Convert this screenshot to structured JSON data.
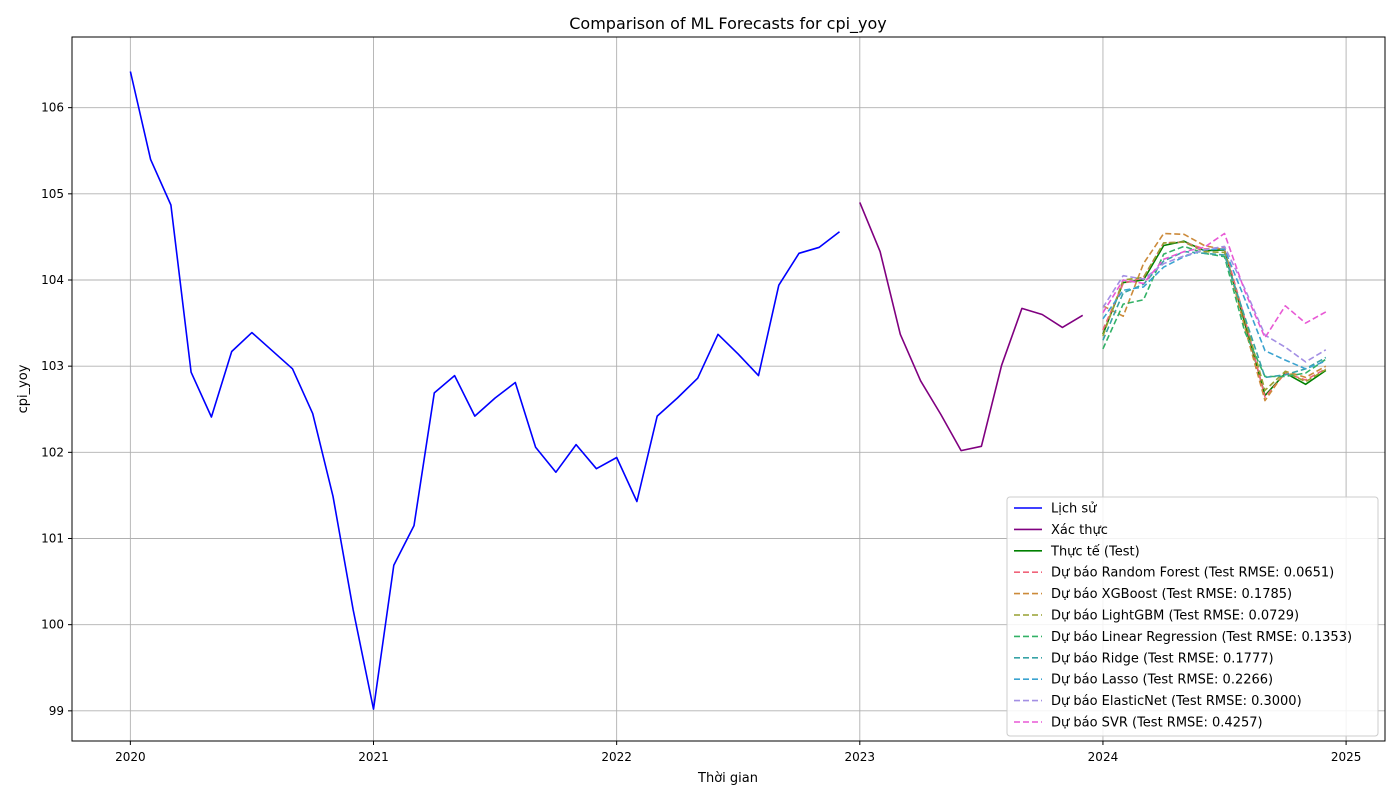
{
  "chart_data": {
    "type": "line",
    "title": "Comparison of ML Forecasts for cpi_yoy",
    "xlabel": "Thời gian",
    "ylabel": "cpi_yoy",
    "xlim": [
      2019.76,
      2025.16
    ],
    "ylim": [
      98.65,
      106.82
    ],
    "x_ticks": [
      {
        "value": 2020,
        "label": "2020"
      },
      {
        "value": 2021,
        "label": "2021"
      },
      {
        "value": 2022,
        "label": "2022"
      },
      {
        "value": 2023,
        "label": "2023"
      },
      {
        "value": 2024,
        "label": "2024"
      },
      {
        "value": 2025,
        "label": "2025"
      }
    ],
    "y_ticks": [
      {
        "value": 99,
        "label": "99"
      },
      {
        "value": 100,
        "label": "100"
      },
      {
        "value": 101,
        "label": "101"
      },
      {
        "value": 102,
        "label": "102"
      },
      {
        "value": 103,
        "label": "103"
      },
      {
        "value": 104,
        "label": "104"
      },
      {
        "value": 105,
        "label": "105"
      },
      {
        "value": 106,
        "label": "106"
      }
    ],
    "grid": true,
    "legend_position": "lower-right",
    "series": [
      {
        "name": "Lịch sử",
        "color": "#0000ff",
        "style": "solid",
        "x": [
          "2020-01",
          "2020-02",
          "2020-03",
          "2020-04",
          "2020-05",
          "2020-06",
          "2020-07",
          "2020-08",
          "2020-09",
          "2020-10",
          "2020-11",
          "2020-12",
          "2021-01",
          "2021-02",
          "2021-03",
          "2021-04",
          "2021-05",
          "2021-06",
          "2021-07",
          "2021-08",
          "2021-09",
          "2021-10",
          "2021-11",
          "2021-12",
          "2022-01",
          "2022-02",
          "2022-03",
          "2022-04",
          "2022-05",
          "2022-06",
          "2022-07",
          "2022-08",
          "2022-09",
          "2022-10",
          "2022-11",
          "2022-12"
        ],
        "y": [
          106.42,
          105.4,
          104.87,
          102.93,
          102.41,
          103.17,
          103.39,
          103.18,
          102.97,
          102.45,
          101.49,
          100.17,
          99.02,
          100.69,
          101.15,
          102.69,
          102.89,
          102.42,
          102.63,
          102.81,
          102.06,
          101.77,
          102.09,
          101.81,
          101.94,
          101.43,
          102.42,
          102.63,
          102.86,
          103.37,
          103.14,
          102.89,
          103.94,
          104.31,
          104.38,
          104.56
        ]
      },
      {
        "name": "Xác thực",
        "color": "#800080",
        "style": "solid",
        "x": [
          "2023-01",
          "2023-02",
          "2023-03",
          "2023-04",
          "2023-05",
          "2023-06",
          "2023-07",
          "2023-08",
          "2023-09",
          "2023-10",
          "2023-11",
          "2023-12"
        ],
        "y": [
          104.9,
          104.33,
          103.37,
          102.83,
          102.44,
          102.02,
          102.07,
          103.01,
          103.67,
          103.6,
          103.45,
          103.59
        ]
      },
      {
        "name": "Thực tế (Test)",
        "color": "#008000",
        "style": "solid",
        "x": [
          "2024-01",
          "2024-02",
          "2024-03",
          "2024-04",
          "2024-05",
          "2024-06",
          "2024-07",
          "2024-08",
          "2024-09",
          "2024-10",
          "2024-11",
          "2024-12"
        ],
        "y": [
          103.37,
          103.97,
          104.0,
          104.4,
          104.45,
          104.34,
          104.35,
          103.5,
          102.66,
          102.92,
          102.79,
          102.95
        ]
      },
      {
        "name": "Dự báo Random Forest (Test RMSE: 0.0651)",
        "color": "#f0637a",
        "style": "dashed",
        "x": [
          "2024-01",
          "2024-02",
          "2024-03",
          "2024-04",
          "2024-05",
          "2024-06",
          "2024-07",
          "2024-08",
          "2024-09",
          "2024-10",
          "2024-11",
          "2024-12"
        ],
        "y": [
          103.42,
          103.96,
          104.03,
          104.43,
          104.44,
          104.36,
          104.38,
          103.55,
          102.64,
          102.92,
          102.84,
          102.97
        ]
      },
      {
        "name": "Dự báo XGBoost (Test RMSE: 0.1785)",
        "color": "#cc8a3a",
        "style": "dashed",
        "x": [
          "2024-01",
          "2024-02",
          "2024-03",
          "2024-04",
          "2024-05",
          "2024-06",
          "2024-07",
          "2024-08",
          "2024-09",
          "2024-10",
          "2024-11",
          "2024-12"
        ],
        "y": [
          103.7,
          103.58,
          104.19,
          104.54,
          104.53,
          104.4,
          104.35,
          103.45,
          102.6,
          102.94,
          102.87,
          103.0
        ]
      },
      {
        "name": "Dự báo LightGBM (Test RMSE: 0.0729)",
        "color": "#97a131",
        "style": "dashed",
        "x": [
          "2024-01",
          "2024-02",
          "2024-03",
          "2024-04",
          "2024-05",
          "2024-06",
          "2024-07",
          "2024-08",
          "2024-09",
          "2024-10",
          "2024-11",
          "2024-12"
        ],
        "y": [
          103.35,
          104.0,
          104.03,
          104.43,
          104.44,
          104.33,
          104.32,
          103.55,
          102.72,
          102.94,
          102.82,
          102.96
        ]
      },
      {
        "name": "Dự báo Linear Regression (Test RMSE: 0.1353)",
        "color": "#32b166",
        "style": "dashed",
        "x": [
          "2024-01",
          "2024-02",
          "2024-03",
          "2024-04",
          "2024-05",
          "2024-06",
          "2024-07",
          "2024-08",
          "2024-09",
          "2024-10",
          "2024-11",
          "2024-12"
        ],
        "y": [
          103.2,
          103.72,
          103.77,
          104.3,
          104.39,
          104.31,
          104.27,
          103.4,
          102.88,
          102.88,
          102.92,
          103.08
        ]
      },
      {
        "name": "Dự báo Ridge (Test RMSE: 0.1777)",
        "color": "#37a3a6",
        "style": "dashed",
        "x": [
          "2024-01",
          "2024-02",
          "2024-03",
          "2024-04",
          "2024-05",
          "2024-06",
          "2024-07",
          "2024-08",
          "2024-09",
          "2024-10",
          "2024-11",
          "2024-12"
        ],
        "y": [
          103.3,
          103.85,
          103.95,
          104.22,
          104.33,
          104.31,
          104.29,
          103.57,
          102.87,
          102.9,
          102.97,
          103.1
        ]
      },
      {
        "name": "Dự báo Lasso (Test RMSE: 0.2266)",
        "color": "#3ba3d0",
        "style": "dashed",
        "x": [
          "2024-01",
          "2024-02",
          "2024-03",
          "2024-04",
          "2024-05",
          "2024-06",
          "2024-07",
          "2024-08",
          "2024-09",
          "2024-10",
          "2024-11",
          "2024-12"
        ],
        "y": [
          103.55,
          103.88,
          103.92,
          104.15,
          104.27,
          104.35,
          104.36,
          103.78,
          103.18,
          103.07,
          102.97,
          103.06
        ]
      },
      {
        "name": "Dự báo ElasticNet (Test RMSE: 0.3000)",
        "color": "#a38fe4",
        "style": "dashed",
        "x": [
          "2024-01",
          "2024-02",
          "2024-03",
          "2024-04",
          "2024-05",
          "2024-06",
          "2024-07",
          "2024-08",
          "2024-09",
          "2024-10",
          "2024-11",
          "2024-12"
        ],
        "y": [
          103.68,
          104.05,
          104.01,
          104.19,
          104.28,
          104.35,
          104.39,
          103.9,
          103.36,
          103.22,
          103.05,
          103.19
        ]
      },
      {
        "name": "Dự báo SVR (Test RMSE: 0.4257)",
        "color": "#e859d5",
        "style": "dashed",
        "x": [
          "2024-01",
          "2024-02",
          "2024-03",
          "2024-04",
          "2024-05",
          "2024-06",
          "2024-07",
          "2024-08",
          "2024-09",
          "2024-10",
          "2024-11",
          "2024-12"
        ],
        "y": [
          103.62,
          104.0,
          103.96,
          104.24,
          104.33,
          104.38,
          104.54,
          103.87,
          103.33,
          103.7,
          103.5,
          103.63
        ]
      }
    ]
  }
}
